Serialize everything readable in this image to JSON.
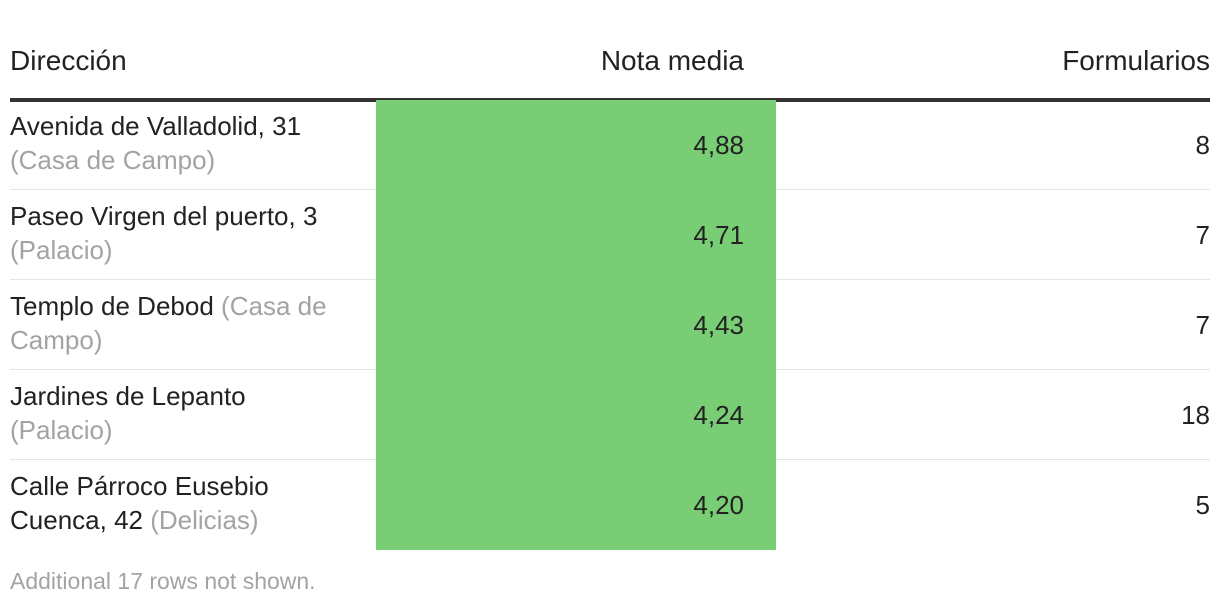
{
  "chart_data": {
    "type": "table",
    "columns": [
      "Dirección",
      "Nota media",
      "Formularios"
    ],
    "rows": [
      {
        "address": "Avenida de Valladolid, 31",
        "district": "(Casa de Campo)",
        "nota_media": "4,88",
        "nota_value": 4.88,
        "formularios": "8"
      },
      {
        "address": "Paseo Virgen del puerto, 3",
        "district": "(Palacio)",
        "nota_media": "4,71",
        "nota_value": 4.71,
        "formularios": "7"
      },
      {
        "address": "Templo de Debod",
        "district": "(Casa de Campo)",
        "nota_media": "4,43",
        "nota_value": 4.43,
        "formularios": "7"
      },
      {
        "address": "Jardines de Lepanto",
        "district": "(Palacio)",
        "nota_media": "4,24",
        "nota_value": 4.24,
        "formularios": "18"
      },
      {
        "address": "Calle Párroco Eusebio Cuenca, 42",
        "district": "(Delicias)",
        "nota_media": "4,20",
        "nota_value": 4.2,
        "formularios": "5"
      }
    ],
    "heatmap_color": "#78cd75",
    "footnote": "Additional 17 rows not shown."
  },
  "colors": {
    "text": "#222222",
    "muted": "#a3a3a3",
    "heat": "#78cd75",
    "header_rule": "#333333",
    "row_rule": "#e6e6e6"
  }
}
